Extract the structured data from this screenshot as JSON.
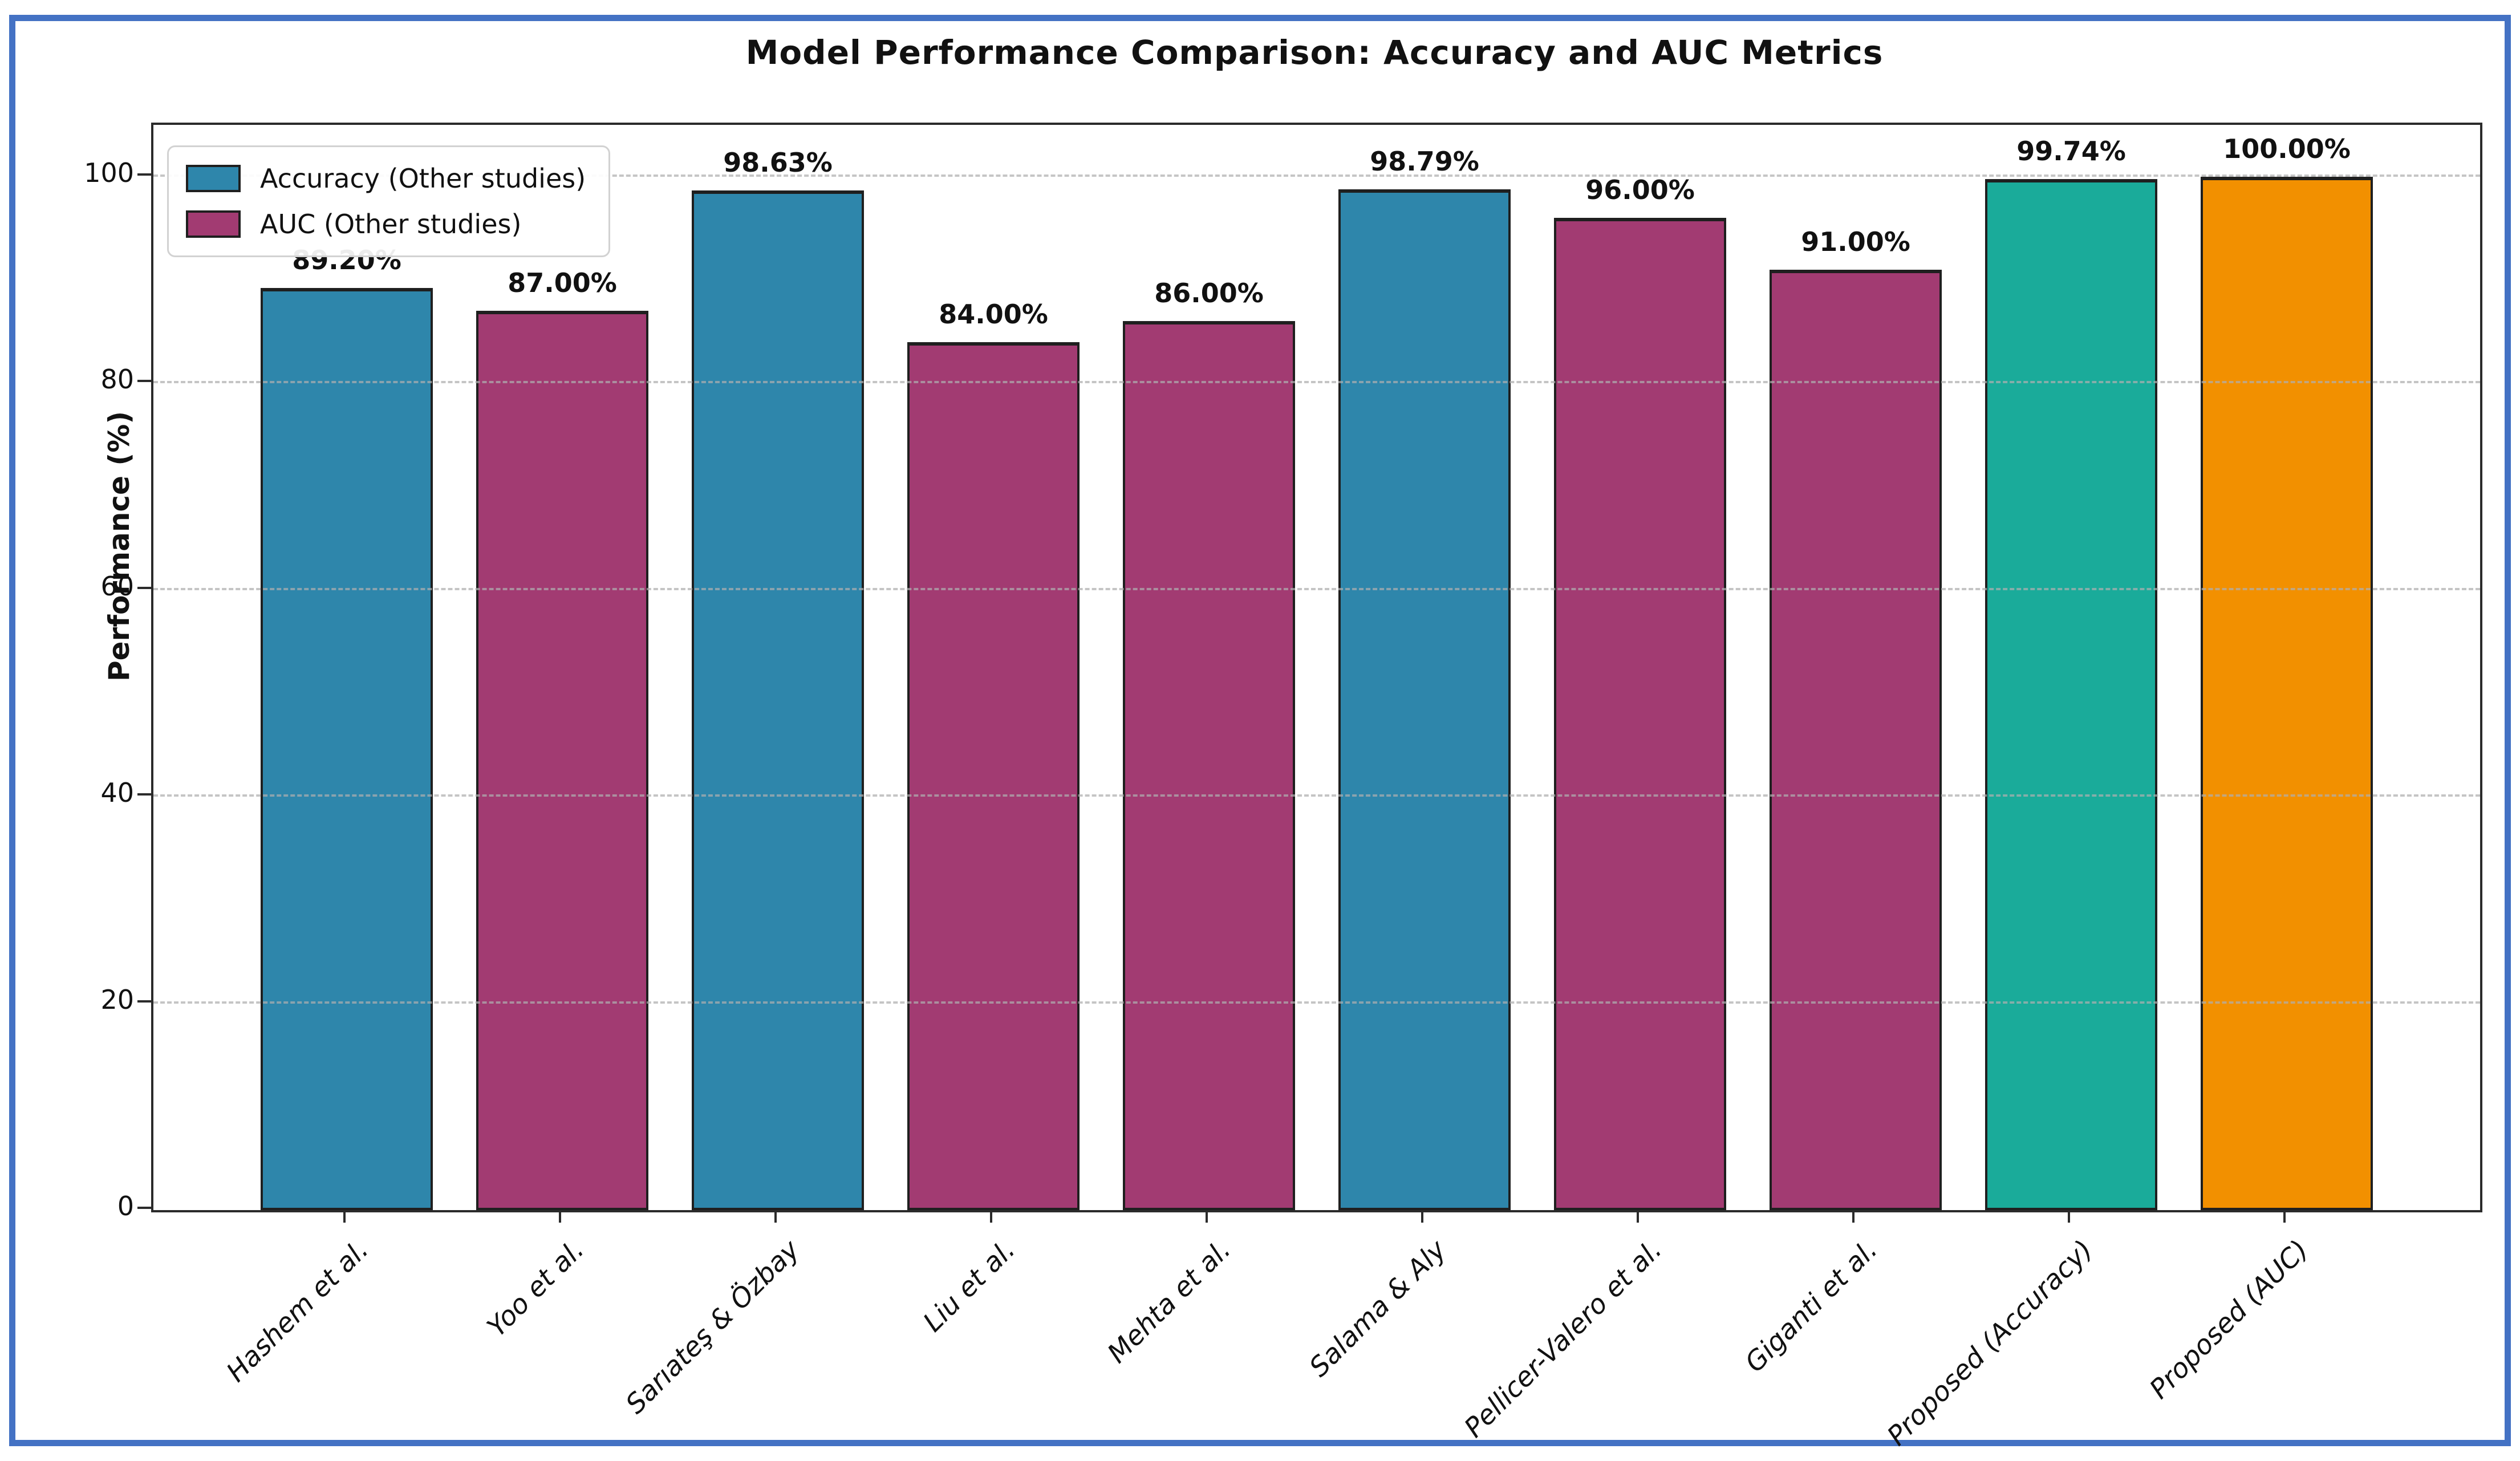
{
  "chart_data": {
    "type": "bar",
    "title": "Model Performance Comparison: Accuracy and AUC Metrics",
    "xlabel": "",
    "ylabel": "Performance (%)",
    "ylim": [
      0,
      105
    ],
    "yticks": [
      0,
      20,
      40,
      60,
      80,
      100
    ],
    "grid": "horizontal-dashed-over-bars",
    "legend_position": "upper-left",
    "legend": [
      {
        "label": "Accuracy (Other studies)",
        "color_key": "accuracy"
      },
      {
        "label": "AUC (Other studies)",
        "color_key": "auc"
      }
    ],
    "categories": [
      "Hashem et al.",
      "Yoo et al.",
      "Sarıateş & Özbay",
      "Liu et al.",
      "Mehta et al.",
      "Salama & Aly",
      "Pellicer-Valero et al.",
      "Giganti et al.",
      "Proposed (Accuracy)",
      "Proposed (AUC)"
    ],
    "values": [
      89.2,
      87.0,
      98.63,
      84.0,
      86.0,
      98.79,
      96.0,
      91.0,
      99.74,
      100.0
    ],
    "bars": [
      {
        "label": "Hashem et al.",
        "value": 89.2,
        "display": "89.20%",
        "color_key": "accuracy"
      },
      {
        "label": "Yoo et al.",
        "value": 87.0,
        "display": "87.00%",
        "color_key": "auc"
      },
      {
        "label": "Sarıateş & Özbay",
        "value": 98.63,
        "display": "98.63%",
        "color_key": "accuracy"
      },
      {
        "label": "Liu et al.",
        "value": 84.0,
        "display": "84.00%",
        "color_key": "auc"
      },
      {
        "label": "Mehta et al.",
        "value": 86.0,
        "display": "86.00%",
        "color_key": "auc"
      },
      {
        "label": "Salama & Aly",
        "value": 98.79,
        "display": "98.79%",
        "color_key": "accuracy"
      },
      {
        "label": "Pellicer-Valero et al.",
        "value": 96.0,
        "display": "96.00%",
        "color_key": "auc"
      },
      {
        "label": "Giganti et al.",
        "value": 91.0,
        "display": "91.00%",
        "color_key": "auc"
      },
      {
        "label": "Proposed (Accuracy)",
        "value": 99.74,
        "display": "99.74%",
        "color_key": "proposed_accuracy"
      },
      {
        "label": "Proposed (AUC)",
        "value": 100.0,
        "display": "100.00%",
        "color_key": "proposed_auc"
      }
    ],
    "colors": {
      "accuracy": "#2E86AB",
      "auc": "#A23B72",
      "proposed_accuracy": "#1AAB9A",
      "proposed_auc": "#F29000",
      "bar_edge": "#1f1f1f",
      "frame_border": "#4472C4",
      "grid": "#AEAEAE",
      "spine": "#2b2b2b",
      "text": "#111111"
    }
  }
}
